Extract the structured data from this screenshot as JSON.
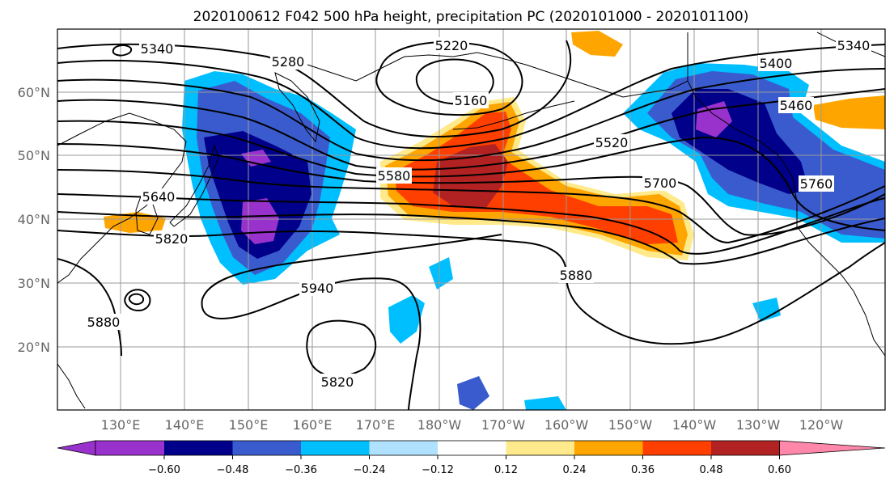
{
  "title": "2020100612 F042 500 hPa height, precipitation PC (2020101000 - 2020101100)",
  "lat_labels": [
    "60°N",
    "50°N",
    "40°N",
    "30°N",
    "20°N"
  ],
  "lon_labels": [
    "130°E",
    "140°E",
    "150°E",
    "160°E",
    "170°E",
    "180°W",
    "170°W",
    "160°W",
    "150°W",
    "140°W",
    "130°W",
    "120°W"
  ],
  "contour_labels": [
    "5340",
    "5280",
    "5220",
    "5160",
    "5400",
    "5460",
    "5520",
    "5580",
    "5640",
    "5820",
    "5700",
    "5760",
    "5880",
    "5940",
    "5820",
    "5880",
    "5340"
  ],
  "colorbar": {
    "colors": [
      "#9932cc",
      "#00008b",
      "#3a5bcd",
      "#00bfff",
      "#b0e2ff",
      "#ffffff",
      "#ffea8b",
      "#ffa500",
      "#ff3f00",
      "#b22222",
      "#ff88aa"
    ],
    "ticks": [
      "−0.60",
      "−0.48",
      "−0.36",
      "−0.24",
      "−0.12",
      "0.12",
      "0.24",
      "0.36",
      "0.48",
      "0.60"
    ]
  }
}
